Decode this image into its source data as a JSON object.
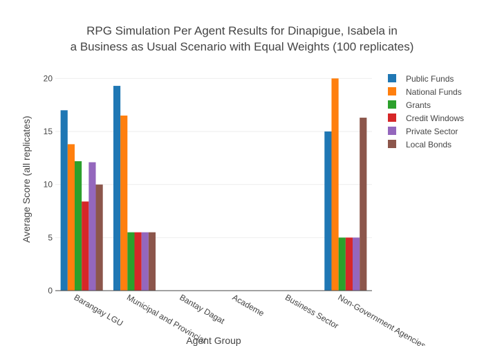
{
  "chart_data": {
    "type": "bar",
    "title_lines": [
      "RPG Simulation Per Agent Results for Dinapigue, Isabela in",
      "a Business as Usual Scenario with Equal Weights (100 replicates)"
    ],
    "xlabel": "Agent Group",
    "ylabel": "Average Score (all replicates)",
    "ylim": [
      0,
      21
    ],
    "yticks": [
      0,
      5,
      10,
      15,
      20
    ],
    "grid": true,
    "legend_position": "top-right",
    "categories": [
      "Barangay LGU",
      "Municipal and Provincial",
      "Bantay Dagat",
      "Academe",
      "Business Sector",
      "Non-Government Agencies"
    ],
    "series": [
      {
        "name": "Public Funds",
        "color": "#1f77b4",
        "values": [
          17.0,
          19.3,
          0,
          0,
          0,
          15.0
        ]
      },
      {
        "name": "National Funds",
        "color": "#ff7f0e",
        "values": [
          13.8,
          16.5,
          0,
          0,
          0,
          20.0
        ]
      },
      {
        "name": "Grants",
        "color": "#2ca02c",
        "values": [
          12.2,
          5.5,
          0,
          0,
          0,
          5.0
        ]
      },
      {
        "name": "Credit Windows",
        "color": "#d62728",
        "values": [
          8.4,
          5.5,
          0,
          0,
          0,
          5.0
        ]
      },
      {
        "name": "Private Sector",
        "color": "#9467bd",
        "values": [
          12.1,
          5.5,
          0,
          0,
          0,
          5.0
        ]
      },
      {
        "name": "Local Bonds",
        "color": "#8c564b",
        "values": [
          10.0,
          5.5,
          0,
          0,
          0,
          16.3
        ]
      }
    ]
  }
}
